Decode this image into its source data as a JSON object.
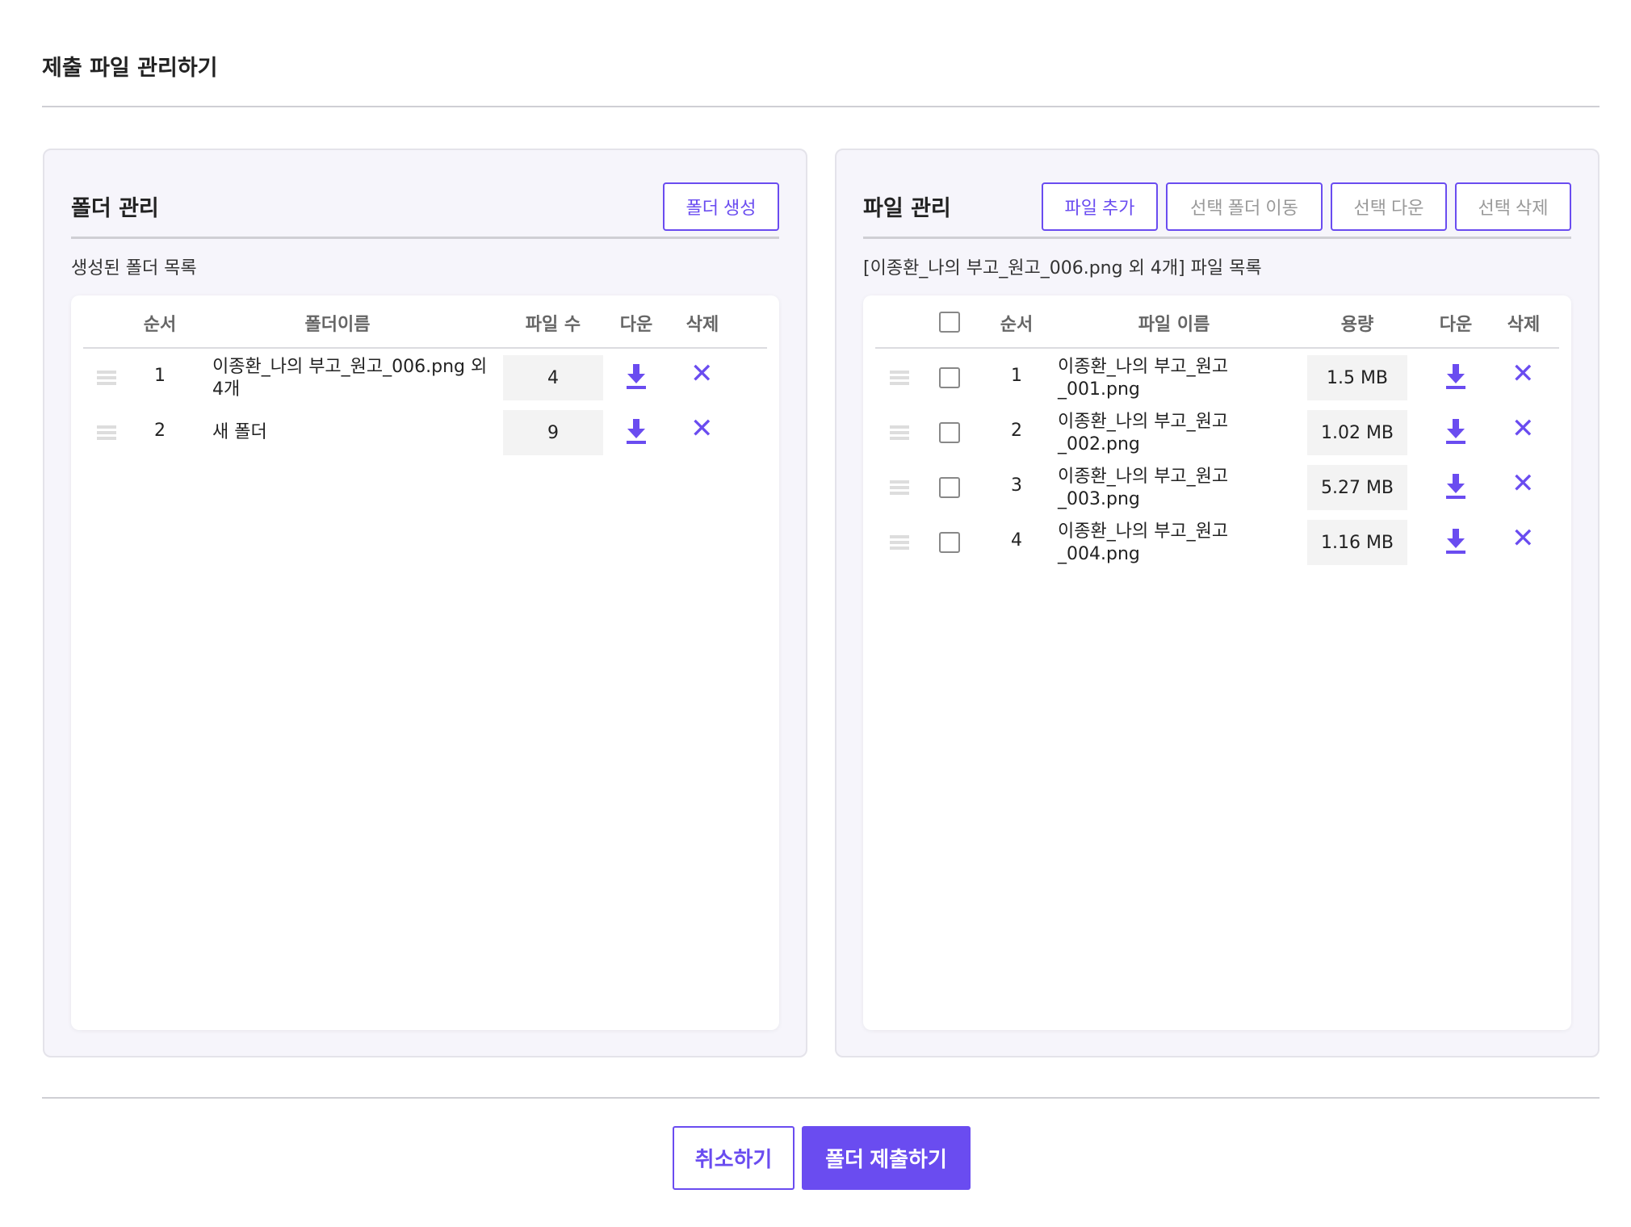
{
  "page_title": "제출 파일 관리하기",
  "accent": "#6a4cf0",
  "folder_panel": {
    "title": "폴더 관리",
    "create_button": "폴더 생성",
    "list_label": "생성된 폴더 목록",
    "columns": [
      "순서",
      "폴더이름",
      "파일 수",
      "다운",
      "삭제"
    ],
    "rows": [
      {
        "order": "1",
        "name": "이종환_나의 부고_원고_006.png 외 4개",
        "count": "4"
      },
      {
        "order": "2",
        "name": "새 폴더",
        "count": "9"
      }
    ]
  },
  "file_panel": {
    "title": "파일 관리",
    "buttons": [
      "파일 추가",
      "선택 폴더 이동",
      "선택 다운",
      "선택 삭제"
    ],
    "list_label": "[이종환_나의 부고_원고_006.png 외 4개] 파일 목록",
    "columns": [
      "순서",
      "파일 이름",
      "용량",
      "다운",
      "삭제"
    ],
    "rows": [
      {
        "order": "1",
        "name": "이종환_나의 부고_원고_001.png",
        "size": "1.5 MB"
      },
      {
        "order": "2",
        "name": "이종환_나의 부고_원고_002.png",
        "size": "1.02 MB"
      },
      {
        "order": "3",
        "name": "이종환_나의 부고_원고_003.png",
        "size": "5.27 MB"
      },
      {
        "order": "4",
        "name": "이종환_나의 부고_원고_004.png",
        "size": "1.16 MB"
      }
    ]
  },
  "footer": {
    "cancel": "취소하기",
    "submit": "폴더 제출하기"
  }
}
